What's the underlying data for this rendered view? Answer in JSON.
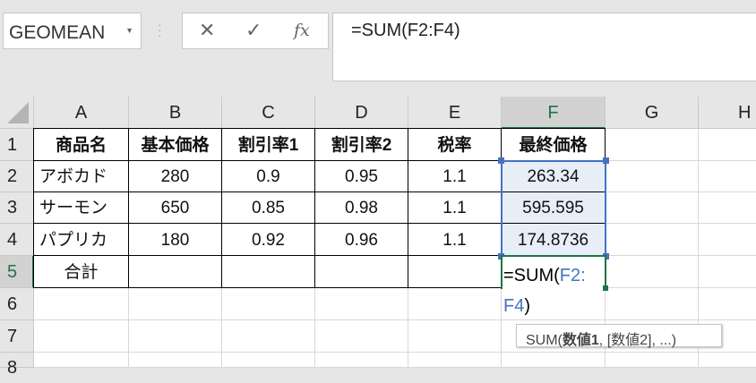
{
  "name_box": {
    "value": "GEOMEAN"
  },
  "formula_bar": {
    "cancel_icon": "✕",
    "enter_icon": "✓",
    "fx_label": "fx",
    "value": "=SUM(F2:F4)"
  },
  "columns": [
    "A",
    "B",
    "C",
    "D",
    "E",
    "F",
    "G",
    "H"
  ],
  "rows": [
    "1",
    "2",
    "3",
    "4",
    "5",
    "6",
    "7",
    "8"
  ],
  "selected_column": "F",
  "selected_row": "5",
  "table": {
    "headers": [
      "商品名",
      "基本価格",
      "割引率1",
      "割引率2",
      "税率",
      "最終価格"
    ],
    "rows": [
      [
        "アボカド",
        "280",
        "0.9",
        "0.95",
        "1.1",
        "263.34"
      ],
      [
        "サーモン",
        "650",
        "0.85",
        "0.98",
        "1.1",
        "595.595"
      ],
      [
        "パプリカ",
        "180",
        "0.92",
        "0.96",
        "1.1",
        "174.8736"
      ],
      [
        "合計",
        "",
        "",
        "",
        "",
        ""
      ]
    ]
  },
  "editing_cell": {
    "prefix": "=SUM(",
    "ref1": "F2:",
    "ref2": "F4",
    ",suffix": "",
    "suffix": ")"
  },
  "tooltip": {
    "func": "SUM(",
    "arg1": "数値1",
    "rest": ", [数値2], ...)"
  },
  "colors": {
    "selection": "#4472c4",
    "active": "#217346",
    "ref": "#4472c4"
  }
}
